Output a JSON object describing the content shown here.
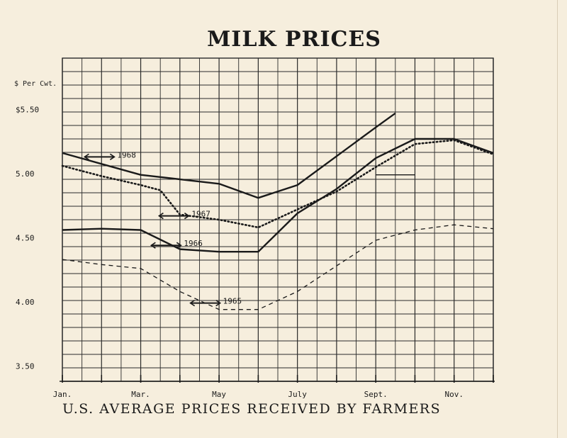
{
  "chart_data": {
    "type": "line",
    "title": "MILK PRICES",
    "subtitle": "U.S. AVERAGE PRICES RECEIVED BY FARMERS",
    "ylabel": "$ Per Cwt.",
    "ytick_labels": [
      {
        "value": 5.5,
        "label": "$5.50"
      },
      {
        "value": 5.0,
        "label": "5.00"
      },
      {
        "value": 4.5,
        "label": "4.50"
      },
      {
        "value": 4.0,
        "label": "4.00"
      },
      {
        "value": 3.5,
        "label": "3.50"
      }
    ],
    "xtick_labels": [
      {
        "month": 1,
        "label": "Jan."
      },
      {
        "month": 3,
        "label": "Mar."
      },
      {
        "month": 5,
        "label": "May"
      },
      {
        "month": 7,
        "label": "July"
      },
      {
        "month": 9,
        "label": "Sept."
      },
      {
        "month": 11,
        "label": "Nov."
      }
    ],
    "x_range": [
      1,
      12
    ],
    "ylim": [
      3.38,
      5.9
    ],
    "grid": true,
    "series": [
      {
        "name": "1968",
        "style": "solid-thick",
        "x": [
          1,
          3,
          5,
          6,
          7,
          9,
          9.5
        ],
        "y": [
          5.16,
          4.99,
          4.92,
          4.81,
          4.91,
          5.36,
          5.47
        ]
      },
      {
        "name": "",
        "style": "solid-thin",
        "x": [
          9,
          10
        ],
        "y": [
          4.99,
          4.99
        ]
      },
      {
        "name": "1967",
        "style": "dotted",
        "x": [
          1,
          2,
          3,
          3.5,
          4,
          5,
          6,
          7,
          8,
          9,
          10,
          11,
          12
        ],
        "y": [
          5.06,
          4.98,
          4.91,
          4.87,
          4.68,
          4.64,
          4.58,
          4.72,
          4.86,
          5.05,
          5.23,
          5.26,
          5.15
        ]
      },
      {
        "name": "1966",
        "style": "solid",
        "x": [
          1,
          2,
          3,
          4,
          5,
          6,
          7,
          8,
          9,
          10,
          11,
          12
        ],
        "y": [
          4.56,
          4.57,
          4.56,
          4.41,
          4.39,
          4.39,
          4.69,
          4.88,
          5.12,
          5.27,
          5.27,
          5.16
        ]
      },
      {
        "name": "1965",
        "style": "dashed",
        "x": [
          1,
          2,
          3,
          4,
          5,
          6,
          7,
          8,
          9,
          10,
          11,
          12
        ],
        "y": [
          4.33,
          4.29,
          4.26,
          4.08,
          3.94,
          3.94,
          4.08,
          4.28,
          4.48,
          4.56,
          4.6,
          4.57
        ]
      }
    ],
    "annotations": [
      {
        "text": "1968",
        "x": 2.4,
        "y": 5.13
      },
      {
        "text": "1967",
        "x": 4.3,
        "y": 4.67
      },
      {
        "text": "1966",
        "x": 4.1,
        "y": 4.44
      },
      {
        "text": "1965",
        "x": 5.1,
        "y": 3.99
      }
    ],
    "colors": {
      "background": "#f6eedd",
      "ink": "#1a1a1a",
      "grid": "#2a2a2a"
    }
  }
}
